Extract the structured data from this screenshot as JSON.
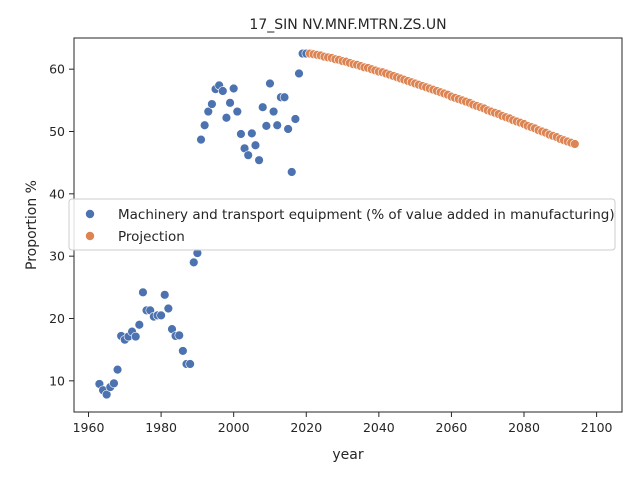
{
  "chart_data": {
    "type": "scatter",
    "title": "17_SIN NV.MNF.MTRN.ZS.UN",
    "xlabel": "year",
    "ylabel": "Proportion %",
    "xlim": [
      1956,
      2107
    ],
    "ylim": [
      5,
      65
    ],
    "xticks": [
      1960,
      1980,
      2000,
      2020,
      2040,
      2060,
      2080,
      2100
    ],
    "yticks": [
      10,
      20,
      30,
      40,
      50,
      60
    ],
    "grid": false,
    "legend_position": "center-left",
    "series": [
      {
        "name": "Machinery and transport equipment (% of value added in manufacturing)",
        "color": "#4c72b0",
        "points": [
          [
            1963,
            9.5
          ],
          [
            1964,
            8.5
          ],
          [
            1965,
            7.8
          ],
          [
            1966,
            9.0
          ],
          [
            1967,
            9.6
          ],
          [
            1968,
            11.8
          ],
          [
            1969,
            17.2
          ],
          [
            1970,
            16.6
          ],
          [
            1971,
            17.1
          ],
          [
            1972,
            17.9
          ],
          [
            1973,
            17.1
          ],
          [
            1974,
            19.0
          ],
          [
            1975,
            24.2
          ],
          [
            1976,
            21.3
          ],
          [
            1977,
            21.3
          ],
          [
            1978,
            20.3
          ],
          [
            1979,
            20.5
          ],
          [
            1980,
            20.5
          ],
          [
            1981,
            23.8
          ],
          [
            1982,
            21.6
          ],
          [
            1983,
            18.3
          ],
          [
            1984,
            17.2
          ],
          [
            1985,
            17.3
          ],
          [
            1986,
            14.8
          ],
          [
            1987,
            12.7
          ],
          [
            1988,
            12.7
          ],
          [
            1989,
            29.0
          ],
          [
            1990,
            30.5
          ],
          [
            1991,
            48.7
          ],
          [
            1992,
            51.0
          ],
          [
            1993,
            53.2
          ],
          [
            1994,
            54.4
          ],
          [
            1995,
            56.8
          ],
          [
            1996,
            57.4
          ],
          [
            1997,
            56.5
          ],
          [
            1998,
            52.2
          ],
          [
            1999,
            54.6
          ],
          [
            2000,
            56.9
          ],
          [
            2001,
            53.2
          ],
          [
            2002,
            49.6
          ],
          [
            2003,
            47.3
          ],
          [
            2004,
            46.2
          ],
          [
            2005,
            49.7
          ],
          [
            2006,
            47.8
          ],
          [
            2007,
            45.4
          ],
          [
            2008,
            53.9
          ],
          [
            2009,
            50.9
          ],
          [
            2010,
            57.7
          ],
          [
            2011,
            53.2
          ],
          [
            2012,
            51.0
          ],
          [
            2013,
            55.5
          ],
          [
            2014,
            55.5
          ],
          [
            2015,
            50.4
          ],
          [
            2016,
            43.5
          ],
          [
            2017,
            52.0
          ],
          [
            2018,
            59.3
          ],
          [
            2019,
            62.5
          ],
          [
            2020,
            62.5
          ]
        ]
      },
      {
        "name": "Projection",
        "color": "#dd8452",
        "x_start": 2021,
        "values": [
          62.5,
          62.4,
          62.3,
          62.2,
          62.0,
          61.9,
          61.8,
          61.6,
          61.5,
          61.3,
          61.2,
          61.0,
          60.8,
          60.7,
          60.5,
          60.3,
          60.2,
          60.0,
          59.8,
          59.6,
          59.5,
          59.3,
          59.1,
          58.9,
          58.7,
          58.5,
          58.3,
          58.1,
          57.9,
          57.7,
          57.5,
          57.3,
          57.1,
          56.9,
          56.7,
          56.5,
          56.3,
          56.1,
          55.9,
          55.6,
          55.4,
          55.2,
          55.0,
          54.8,
          54.6,
          54.3,
          54.1,
          53.9,
          53.7,
          53.4,
          53.2,
          53.0,
          52.8,
          52.5,
          52.3,
          52.1,
          51.8,
          51.6,
          51.4,
          51.2,
          50.9,
          50.7,
          50.5,
          50.2,
          50.0,
          49.8,
          49.5,
          49.3,
          49.1,
          48.8,
          48.6,
          48.4,
          48.2,
          48.0
        ]
      }
    ]
  }
}
